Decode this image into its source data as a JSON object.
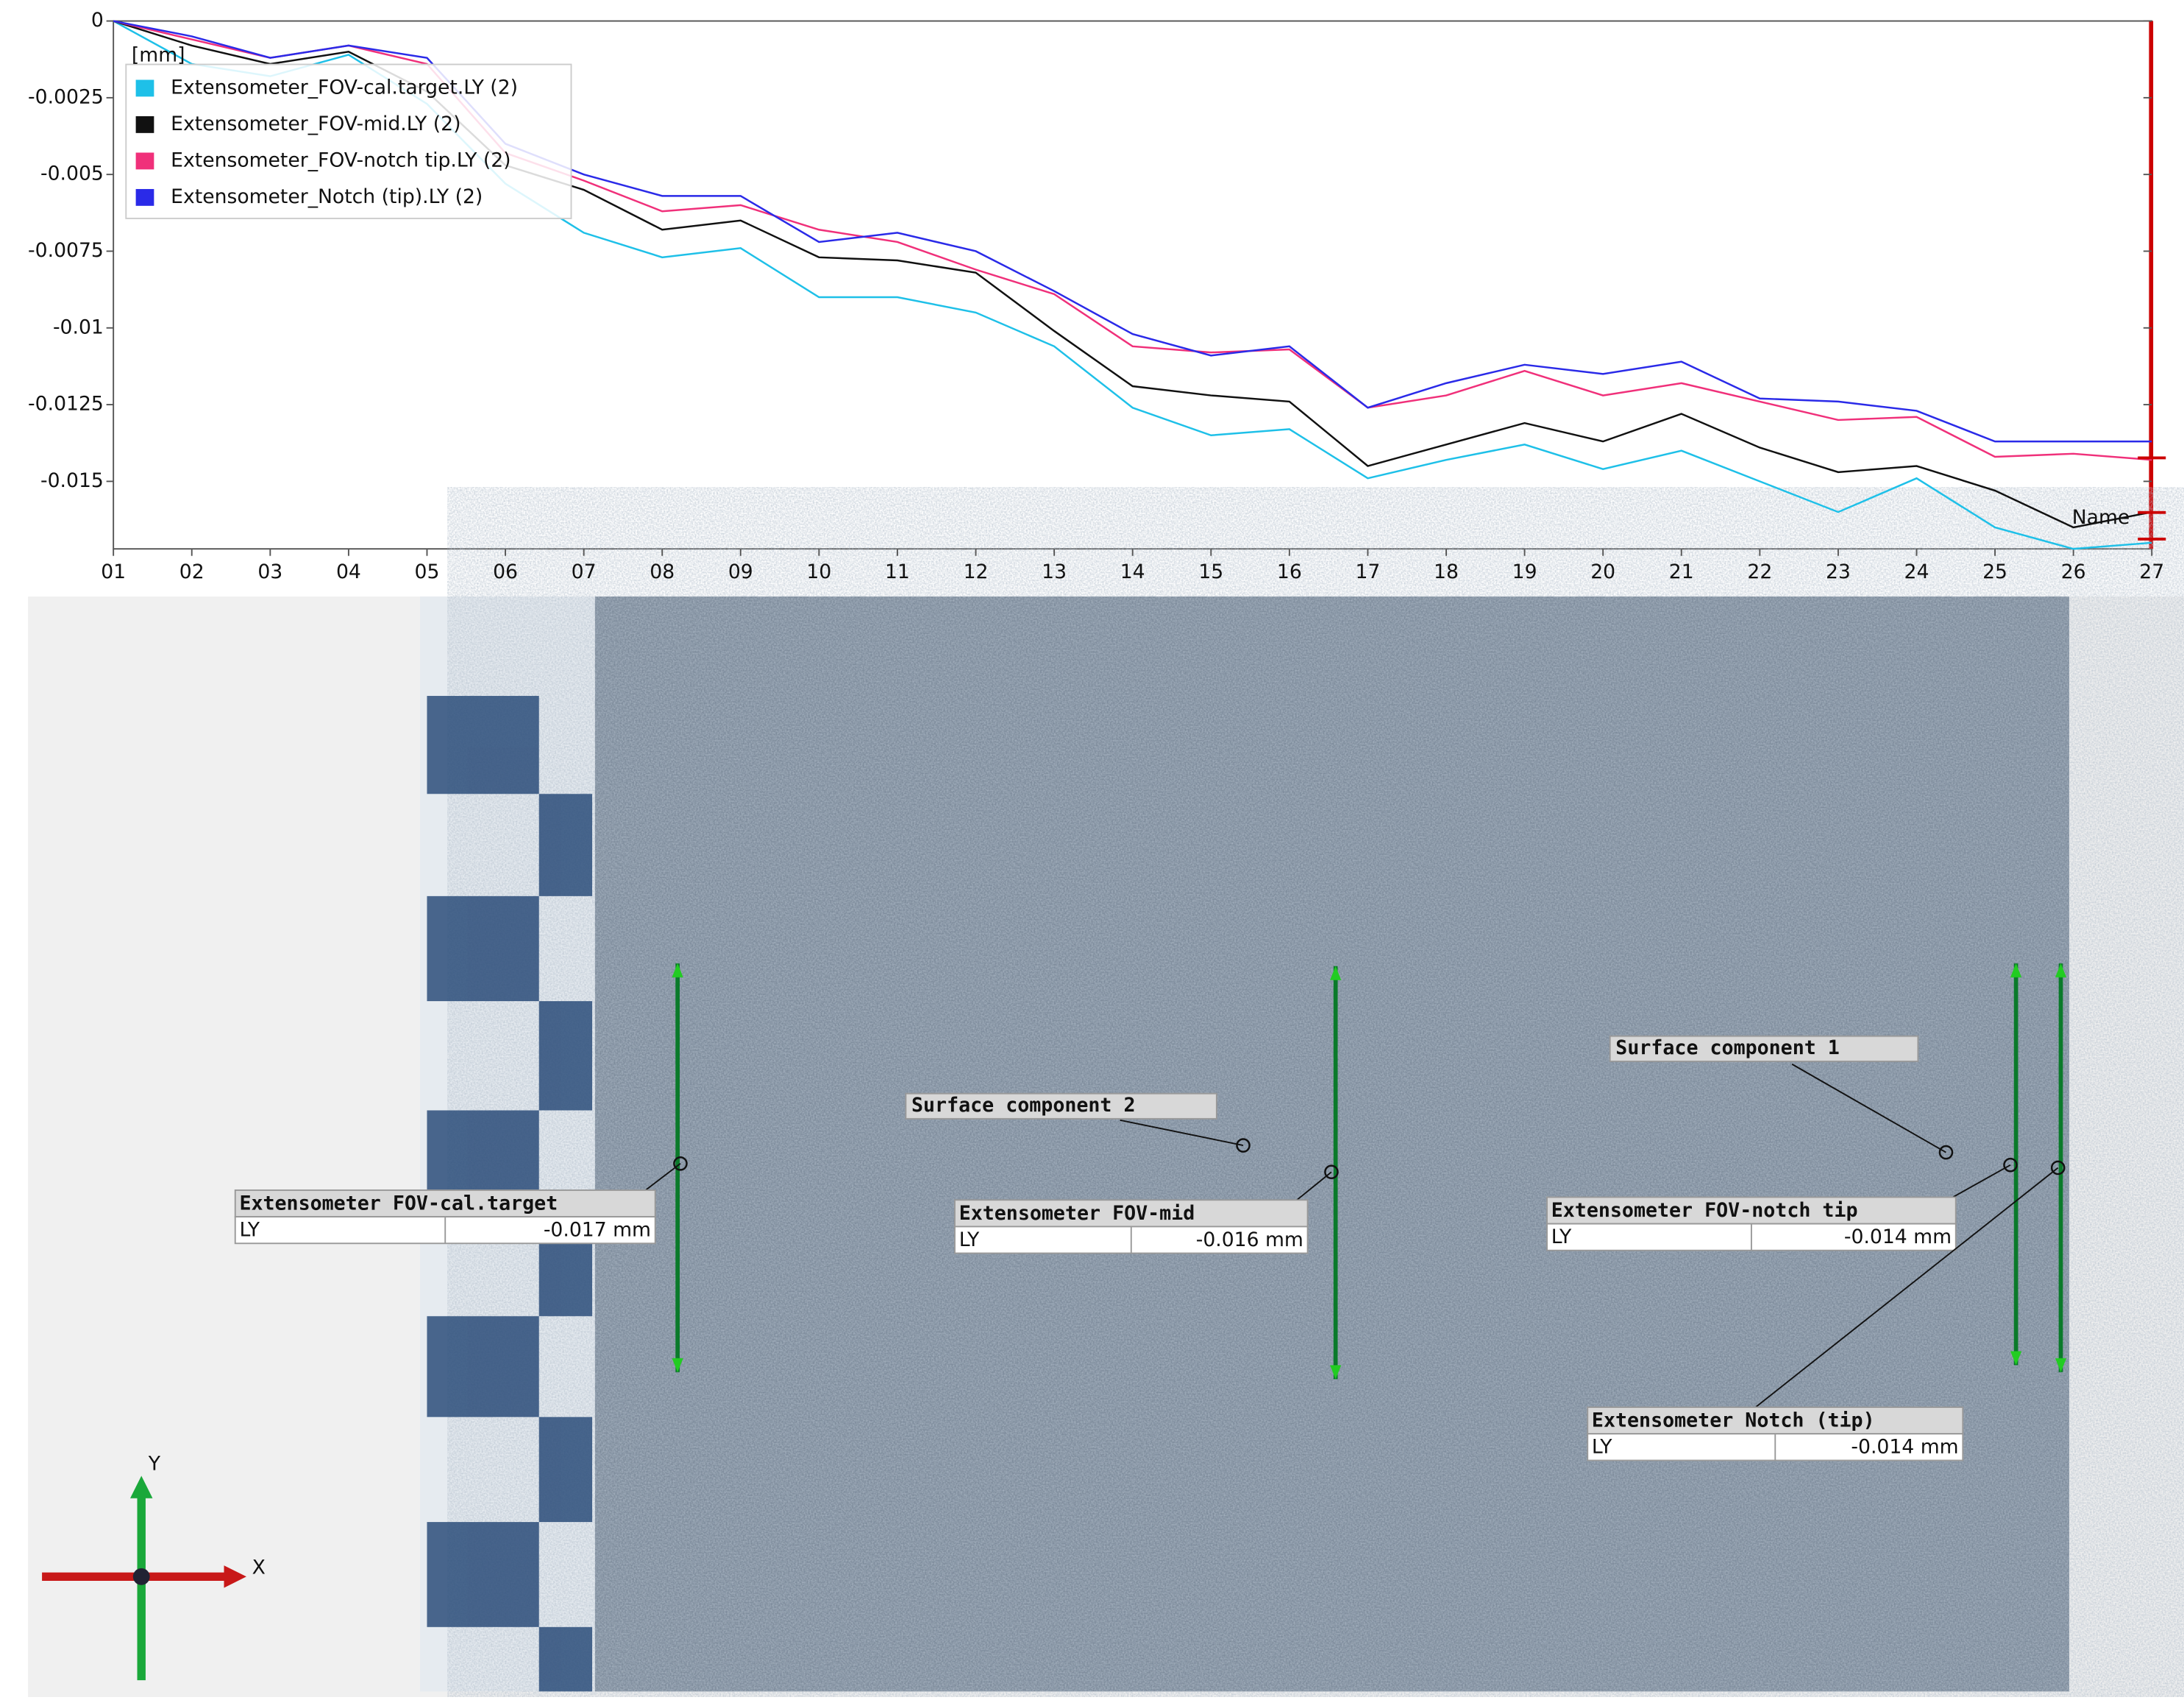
{
  "chart_data": {
    "type": "line",
    "unit_label": "[mm]",
    "cursor_label": "Name",
    "categories": [
      "01",
      "02",
      "03",
      "04",
      "05",
      "06",
      "07",
      "08",
      "09",
      "10",
      "11",
      "12",
      "13",
      "14",
      "15",
      "16",
      "17",
      "18",
      "19",
      "20",
      "21",
      "22",
      "23",
      "24",
      "25",
      "26",
      "27"
    ],
    "series": [
      {
        "name": "Extensometer_FOV-cal.target.LY (2)",
        "color": "#1ec0e8",
        "values": [
          0,
          -0.0014,
          -0.0018,
          -0.0011,
          -0.0027,
          -0.0053,
          -0.0069,
          -0.0077,
          -0.0074,
          -0.009,
          -0.009,
          -0.0095,
          -0.0106,
          -0.0126,
          -0.0135,
          -0.0133,
          -0.0149,
          -0.0143,
          -0.0138,
          -0.0146,
          -0.014,
          -0.015,
          -0.016,
          -0.0149,
          -0.0165,
          -0.0172,
          -0.017
        ]
      },
      {
        "name": "Extensometer_FOV-mid.LY (2)",
        "color": "#111111",
        "values": [
          0,
          -0.0008,
          -0.0014,
          -0.001,
          -0.0023,
          -0.0047,
          -0.0055,
          -0.0068,
          -0.0065,
          -0.0077,
          -0.0078,
          -0.0082,
          -0.0101,
          -0.0119,
          -0.0122,
          -0.0124,
          -0.0145,
          -0.0138,
          -0.0131,
          -0.0137,
          -0.0128,
          -0.0139,
          -0.0147,
          -0.0145,
          -0.0153,
          -0.0165,
          -0.016
        ]
      },
      {
        "name": "Extensometer_FOV-notch tip.LY (2)",
        "color": "#f0307a",
        "values": [
          0,
          -0.0006,
          -0.0012,
          -0.0008,
          -0.0014,
          -0.0043,
          -0.0052,
          -0.0062,
          -0.006,
          -0.0068,
          -0.0072,
          -0.0081,
          -0.0089,
          -0.0106,
          -0.0108,
          -0.0107,
          -0.0126,
          -0.0122,
          -0.0114,
          -0.0122,
          -0.0118,
          -0.0124,
          -0.013,
          -0.0129,
          -0.0142,
          -0.0141,
          -0.0143
        ]
      },
      {
        "name": "Extensometer_Notch (tip).LY (2)",
        "color": "#2a2ae8",
        "values": [
          0,
          -0.0005,
          -0.0012,
          -0.0008,
          -0.0012,
          -0.004,
          -0.005,
          -0.0057,
          -0.0057,
          -0.0072,
          -0.0069,
          -0.0075,
          -0.0088,
          -0.0102,
          -0.0109,
          -0.0106,
          -0.0126,
          -0.0118,
          -0.0112,
          -0.0115,
          -0.0111,
          -0.0123,
          -0.0124,
          -0.0127,
          -0.0137,
          -0.0137,
          -0.0137
        ]
      }
    ],
    "ylim": [
      -0.0172,
      0
    ],
    "yticks": [
      0,
      -0.0025,
      -0.005,
      -0.0075,
      -0.01,
      -0.0125,
      -0.015
    ],
    "legend": "upper left",
    "grid": false
  },
  "viewer": {
    "surface_components": [
      "Surface component 1",
      "Surface component 2"
    ],
    "extensometers": [
      {
        "name": "Extensometer FOV-cal.target",
        "quantity": "LY",
        "value": "-0.017 mm"
      },
      {
        "name": "Extensometer FOV-mid",
        "quantity": "LY",
        "value": "-0.016 mm"
      },
      {
        "name": "Extensometer FOV-notch tip",
        "quantity": "LY",
        "value": "-0.014 mm"
      },
      {
        "name": "Extensometer Notch (tip)",
        "quantity": "LY",
        "value": "-0.014 mm"
      }
    ],
    "axes": {
      "x": "X",
      "y": "Y"
    }
  }
}
